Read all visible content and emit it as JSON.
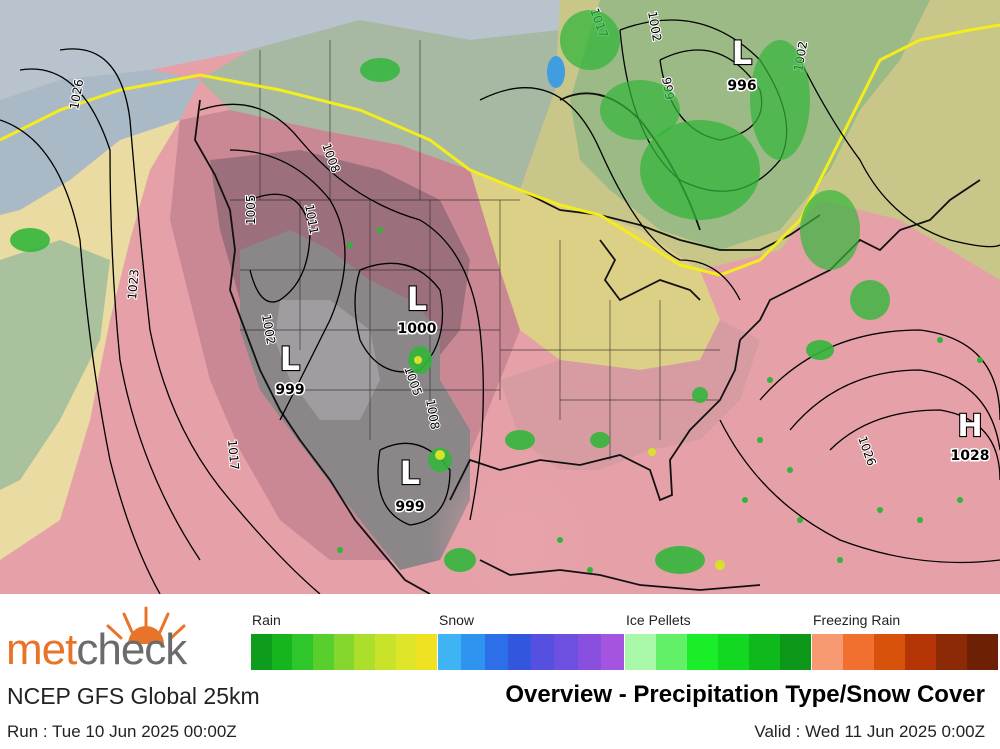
{
  "map": {
    "isobar_labels": [
      "1026",
      "1023",
      "1017",
      "1005",
      "1008",
      "1011",
      "1002",
      "1005",
      "1008",
      "999",
      "1002",
      "1002",
      "1017",
      "1026"
    ],
    "centers": [
      {
        "type": "L",
        "pressure": "996"
      },
      {
        "type": "L",
        "pressure": "1000"
      },
      {
        "type": "L",
        "pressure": "999"
      },
      {
        "type": "L",
        "pressure": "999"
      },
      {
        "type": "H",
        "pressure": "1028"
      }
    ],
    "colors": {
      "ocean_north": "#c3cad3",
      "warm_pink": "#e7a2a8",
      "mid_pink": "#c97f8a",
      "dark_plum": "#9c6b78",
      "gray_land": "#888486",
      "olive_yellow": "#dfd38a",
      "pale_yellow": "#efe3a3",
      "green_blue": "#8fb59a",
      "freezing_line": "#f6ee1e",
      "rain_green": "#37b93b"
    }
  },
  "legend": {
    "brand_part1": "met",
    "brand_part2": "check",
    "categories": [
      {
        "label": "Rain",
        "colors": [
          "#0d9c1c",
          "#16b51d",
          "#2ec62a",
          "#59cf2e",
          "#85d72e",
          "#acde2c",
          "#c8e32a",
          "#dfe528",
          "#eee222"
        ]
      },
      {
        "label": "Snow",
        "colors": [
          "#3fb4f5",
          "#2f93f0",
          "#2d6fe8",
          "#3257de",
          "#5550e0",
          "#6d50e0",
          "#894fdf",
          "#a454e0"
        ]
      },
      {
        "label": "Ice Pellets",
        "colors": [
          "#a9f7a9",
          "#62f069",
          "#1aee28",
          "#12d821",
          "#0fb81b",
          "#0c9718"
        ]
      },
      {
        "label": "Freezing Rain",
        "colors": [
          "#f79a72",
          "#f2702f",
          "#d8520b",
          "#b53506",
          "#8d2a06",
          "#6e2005"
        ]
      }
    ],
    "model": "NCEP GFS Global 25km",
    "run": "Run : Tue 10 Jun 2025 00:00Z",
    "title": "Overview - Precipitation Type/Snow Cover",
    "valid": "Valid : Wed 11 Jun 2025 0:00Z"
  }
}
